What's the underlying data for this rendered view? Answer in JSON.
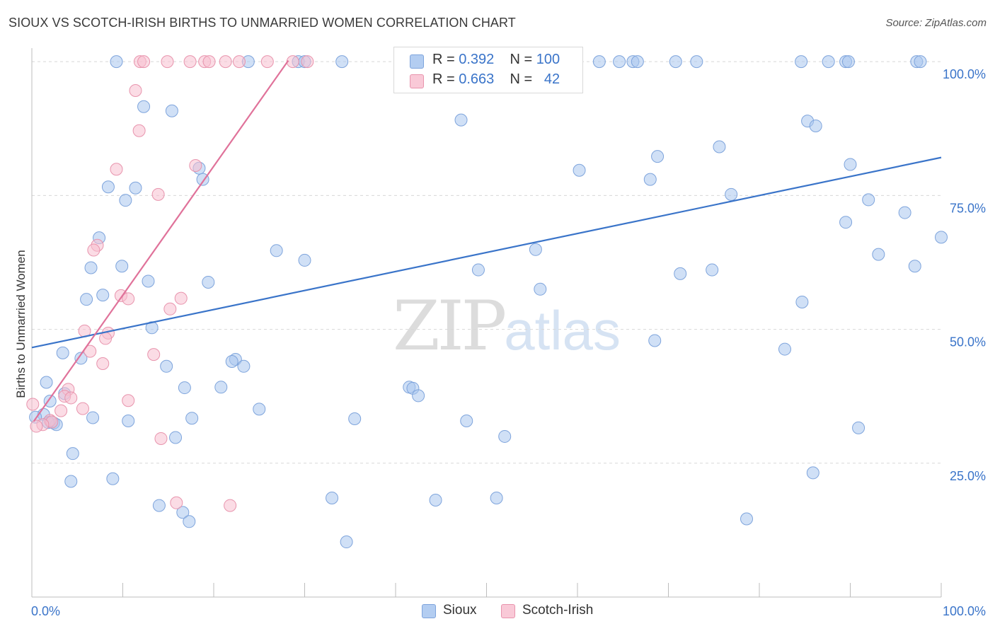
{
  "title": "SIOUX VS SCOTCH-IRISH BIRTHS TO UNMARRIED WOMEN CORRELATION CHART",
  "source": "Source: ZipAtlas.com",
  "watermark": {
    "zip": "ZIP",
    "atlas": "atlas"
  },
  "legend_top": {
    "r_label": "R =",
    "n_label": "N =",
    "rows": [
      {
        "r": "0.392",
        "n": "100"
      },
      {
        "r": "0.663",
        "n": "42"
      }
    ]
  },
  "chart_data": {
    "type": "scatter",
    "title": "SIOUX VS SCOTCH-IRISH BIRTHS TO UNMARRIED WOMEN CORRELATION CHART",
    "xlabel": "",
    "ylabel": "Births to Unmarried Women",
    "xlim": [
      0,
      100
    ],
    "ylim": [
      0,
      102
    ],
    "x_tick_labels": [
      "0.0%",
      "100.0%"
    ],
    "y_ticks": [
      25,
      50,
      75,
      100
    ],
    "y_tick_labels": [
      "25.0%",
      "50.0%",
      "75.0%",
      "100.0%"
    ],
    "grid": true,
    "legend_position": "bottom",
    "colors": {
      "Sioux": "#a9c6ee",
      "Sioux_edge": "#7ea4dc",
      "Sioux_line": "#3a74c9",
      "Scotch-Irish": "#f7bfcf",
      "Scotch-Irish_edge": "#e894ad",
      "Scotch-Irish_line": "#e0729a",
      "tick_label": "#3a74c9"
    },
    "series": [
      {
        "name": "Sioux",
        "r": 0.392,
        "n": 100,
        "trend": {
          "x": [
            0,
            100
          ],
          "y": [
            46.6,
            82.1
          ]
        },
        "points": [
          [
            9.3,
            100
          ],
          [
            23.8,
            100
          ],
          [
            29.3,
            100
          ],
          [
            30.0,
            100
          ],
          [
            34.1,
            100
          ],
          [
            43.3,
            100
          ],
          [
            57.8,
            100
          ],
          [
            62.4,
            100
          ],
          [
            64.6,
            100
          ],
          [
            66.1,
            100
          ],
          [
            66.6,
            100
          ],
          [
            70.8,
            100
          ],
          [
            73.1,
            100
          ],
          [
            84.6,
            100
          ],
          [
            87.6,
            100
          ],
          [
            89.5,
            100
          ],
          [
            89.8,
            100
          ],
          [
            97.3,
            100
          ],
          [
            97.7,
            100
          ],
          [
            12.3,
            91.6
          ],
          [
            15.4,
            90.8
          ],
          [
            47.2,
            89.1
          ],
          [
            85.3,
            88.9
          ],
          [
            86.2,
            88.0
          ],
          [
            75.6,
            84.1
          ],
          [
            68.8,
            82.3
          ],
          [
            18.4,
            80.1
          ],
          [
            90.0,
            80.8
          ],
          [
            60.2,
            79.7
          ],
          [
            18.8,
            78.0
          ],
          [
            68.0,
            78.0
          ],
          [
            8.4,
            76.6
          ],
          [
            11.4,
            76.4
          ],
          [
            76.9,
            75.2
          ],
          [
            10.3,
            74.1
          ],
          [
            92.0,
            74.2
          ],
          [
            96.0,
            71.8
          ],
          [
            89.5,
            70.0
          ],
          [
            7.4,
            67.1
          ],
          [
            100.0,
            67.2
          ],
          [
            26.9,
            64.7
          ],
          [
            55.4,
            64.9
          ],
          [
            93.1,
            64.0
          ],
          [
            30.0,
            62.9
          ],
          [
            97.1,
            61.8
          ],
          [
            6.5,
            61.5
          ],
          [
            9.9,
            61.8
          ],
          [
            49.1,
            61.1
          ],
          [
            74.8,
            61.1
          ],
          [
            71.3,
            60.4
          ],
          [
            12.8,
            59.0
          ],
          [
            19.4,
            58.8
          ],
          [
            55.9,
            57.5
          ],
          [
            7.8,
            56.4
          ],
          [
            6.0,
            55.6
          ],
          [
            84.7,
            55.1
          ],
          [
            13.2,
            50.3
          ],
          [
            68.5,
            47.9
          ],
          [
            82.8,
            46.3
          ],
          [
            3.4,
            45.6
          ],
          [
            5.4,
            44.6
          ],
          [
            22.4,
            44.4
          ],
          [
            14.8,
            43.1
          ],
          [
            23.3,
            43.1
          ],
          [
            1.6,
            40.1
          ],
          [
            41.5,
            39.2
          ],
          [
            16.8,
            39.1
          ],
          [
            41.9,
            39.0
          ],
          [
            20.8,
            39.2
          ],
          [
            42.5,
            37.6
          ],
          [
            3.6,
            38.0
          ],
          [
            2.0,
            36.6
          ],
          [
            25.0,
            35.1
          ],
          [
            1.3,
            34.1
          ],
          [
            0.4,
            33.6
          ],
          [
            6.7,
            33.5
          ],
          [
            17.6,
            33.4
          ],
          [
            35.5,
            33.3
          ],
          [
            10.6,
            32.9
          ],
          [
            47.8,
            32.9
          ],
          [
            2.1,
            32.7
          ],
          [
            2.4,
            32.5
          ],
          [
            2.7,
            32.2
          ],
          [
            90.9,
            31.6
          ],
          [
            52.0,
            30.0
          ],
          [
            15.8,
            29.8
          ],
          [
            4.5,
            26.8
          ],
          [
            85.9,
            23.2
          ],
          [
            8.9,
            22.1
          ],
          [
            4.3,
            21.6
          ],
          [
            33.0,
            18.5
          ],
          [
            51.1,
            18.5
          ],
          [
            44.4,
            18.1
          ],
          [
            14.0,
            17.1
          ],
          [
            16.6,
            15.8
          ],
          [
            17.3,
            14.1
          ],
          [
            78.6,
            14.6
          ],
          [
            34.6,
            10.3
          ],
          [
            1.8,
            32.6
          ],
          [
            22.0,
            44.0
          ]
        ]
      },
      {
        "name": "Scotch-Irish",
        "r": 0.663,
        "n": 42,
        "trend": {
          "x": [
            0.2,
            28.2
          ],
          "y": [
            32.8,
            100.2
          ]
        },
        "points": [
          [
            11.9,
            100
          ],
          [
            12.3,
            100
          ],
          [
            14.9,
            100
          ],
          [
            17.4,
            100
          ],
          [
            19.0,
            100
          ],
          [
            19.5,
            100
          ],
          [
            21.3,
            100
          ],
          [
            22.8,
            100
          ],
          [
            25.9,
            100
          ],
          [
            28.7,
            100
          ],
          [
            30.3,
            100
          ],
          [
            11.4,
            94.6
          ],
          [
            11.8,
            87.1
          ],
          [
            9.3,
            79.9
          ],
          [
            18.0,
            80.6
          ],
          [
            13.9,
            75.2
          ],
          [
            7.2,
            65.7
          ],
          [
            6.8,
            64.8
          ],
          [
            9.8,
            56.3
          ],
          [
            10.6,
            55.7
          ],
          [
            16.4,
            55.8
          ],
          [
            15.2,
            53.8
          ],
          [
            5.8,
            49.7
          ],
          [
            8.4,
            49.3
          ],
          [
            8.1,
            48.3
          ],
          [
            6.4,
            45.9
          ],
          [
            13.4,
            45.3
          ],
          [
            7.8,
            43.6
          ],
          [
            4.0,
            38.8
          ],
          [
            3.6,
            37.5
          ],
          [
            4.3,
            37.2
          ],
          [
            10.6,
            36.7
          ],
          [
            5.6,
            35.2
          ],
          [
            0.1,
            36.0
          ],
          [
            3.2,
            34.8
          ],
          [
            2.0,
            33.0
          ],
          [
            2.2,
            32.7
          ],
          [
            1.2,
            32.2
          ],
          [
            0.5,
            31.9
          ],
          [
            14.2,
            29.6
          ],
          [
            15.9,
            17.6
          ],
          [
            21.8,
            17.1
          ]
        ]
      }
    ]
  }
}
